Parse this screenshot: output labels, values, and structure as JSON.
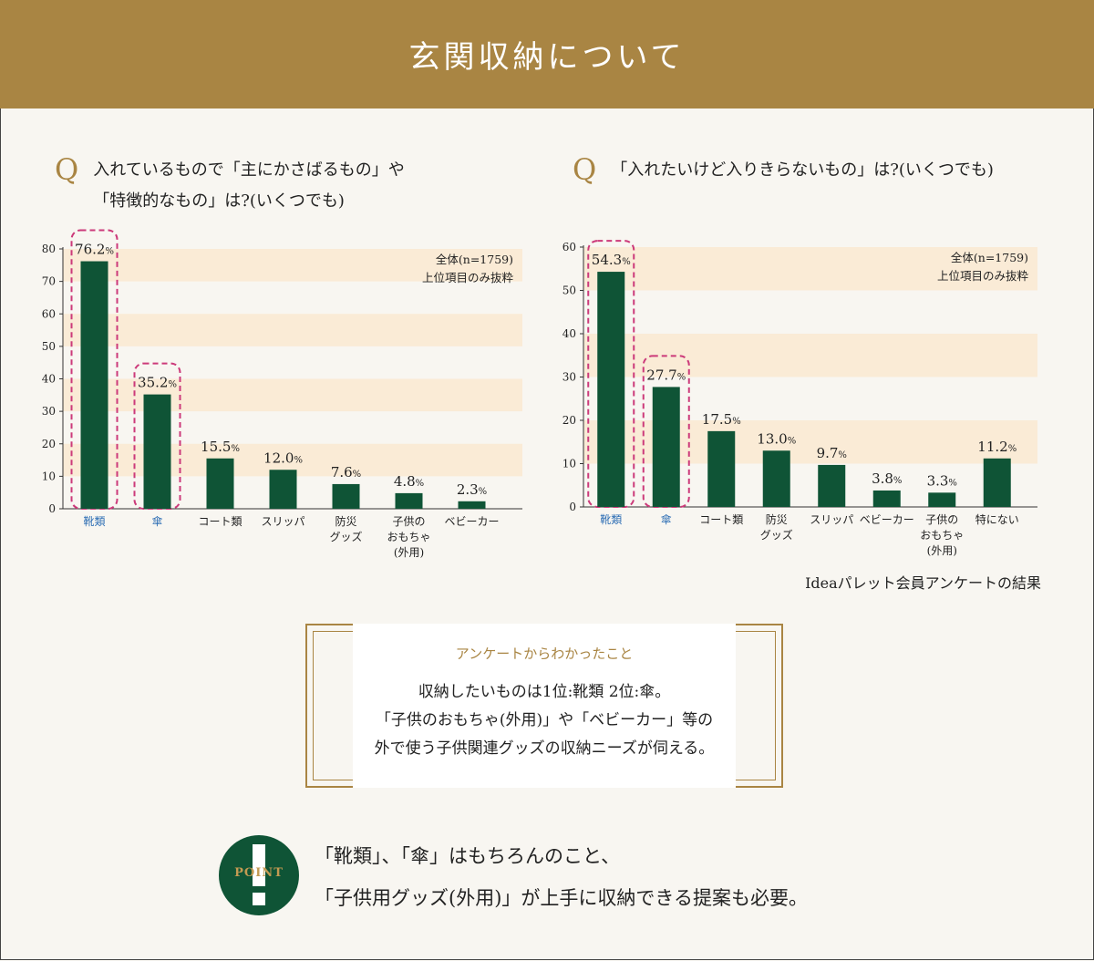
{
  "header": {
    "title": "玄関収納について"
  },
  "left": {
    "q_mark": "Q",
    "question": "入れているもので「主にかさばるもの」や\n「特徴的なもの」は?(いくつでも)"
  },
  "right": {
    "q_mark": "Q",
    "question": "「入れたいけど入りきらないもの」は?(いくつでも)"
  },
  "source_note": "Ideaパレット会員アンケートの結果",
  "finding": {
    "title": "アンケートからわかったこと",
    "body": "収納したいものは1位:靴類 2位:傘。\n「子供のおもちゃ(外用)」や「ベビーカー」等の\n外で使う子供関連グッズの収納ニーズが伺える。"
  },
  "point": {
    "label": "POINT",
    "text": "「靴類」、「傘」はもちろんのこと、\n「子供用グッズ(外用)」が上手に収納できる提案も必要。"
  },
  "colors": {
    "brand": "#a98543",
    "bar": "#0f5436",
    "stripe": "#faebd6",
    "highlight": "#cc3a7a",
    "highlight_label": "#2f6fb5"
  },
  "chart_data": [
    {
      "type": "bar",
      "categories": [
        "靴類",
        "傘",
        "コート類",
        "スリッパ",
        "防災\nグッズ",
        "子供の\nおもちゃ\n(外用)",
        "ベビーカー"
      ],
      "values": [
        76.2,
        35.2,
        15.5,
        12.0,
        7.6,
        4.8,
        2.3
      ],
      "value_labels": [
        "76.2",
        "35.2",
        "15.5",
        "12.0",
        "7.6",
        "4.8",
        "2.3"
      ],
      "unit": "%",
      "yticks": [
        0,
        10,
        20,
        30,
        40,
        50,
        60,
        70,
        80
      ],
      "ylim": [
        0,
        80
      ],
      "highlight": [
        0,
        1
      ],
      "notes": [
        "全体(n=1759)",
        "上位項目のみ抜粋"
      ],
      "grid": "horizontal bands"
    },
    {
      "type": "bar",
      "categories": [
        "靴類",
        "傘",
        "コート類",
        "防災\nグッズ",
        "スリッパ",
        "ベビーカー",
        "子供の\nおもちゃ\n(外用)",
        "特にない"
      ],
      "values": [
        54.3,
        27.7,
        17.5,
        13.0,
        9.7,
        3.8,
        3.3,
        11.2
      ],
      "value_labels": [
        "54.3",
        "27.7",
        "17.5",
        "13.0",
        "9.7",
        "3.8",
        "3.3",
        "11.2"
      ],
      "unit": "%",
      "yticks": [
        0,
        10,
        20,
        30,
        40,
        50,
        60
      ],
      "ylim": [
        0,
        60
      ],
      "highlight": [
        0,
        1
      ],
      "notes": [
        "全体(n=1759)",
        "上位項目のみ抜粋"
      ],
      "grid": "horizontal bands"
    }
  ]
}
